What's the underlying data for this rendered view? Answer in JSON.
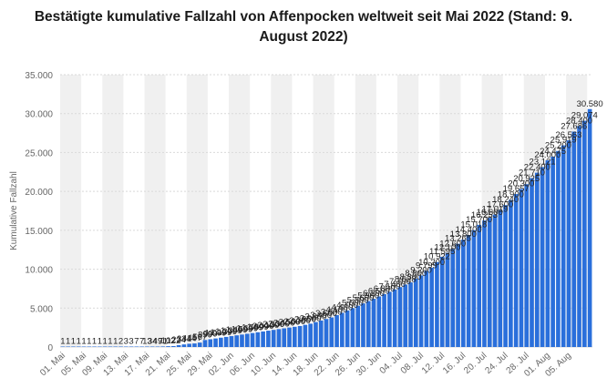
{
  "title": "Bestätigte kumulative Fallzahl von Affenpocken weltweit seit Mai 2022 (Stand: 9. August 2022)",
  "colors": {
    "bar": "#2a6fdb",
    "grid": "#d9d9d9",
    "band": "#f0f0f0",
    "text": "#333333",
    "axis": "#666666"
  },
  "chart_data": {
    "type": "bar",
    "title": "Bestätigte kumulative Fallzahl von Affenpocken weltweit seit Mai 2022 (Stand: 9. August 2022)",
    "xlabel": "",
    "ylabel": "Kumulative Fallzahl",
    "ylim": [
      0,
      35000
    ],
    "yticks": [
      "0",
      "5.000",
      "10.000",
      "15.000",
      "20.000",
      "25.000",
      "30.000",
      "35.000"
    ],
    "ytick_values": [
      0,
      5000,
      10000,
      15000,
      20000,
      25000,
      30000,
      35000
    ],
    "grid": true,
    "categories": [
      "01. Mai",
      "02. Mai",
      "03. Mai",
      "04. Mai",
      "05. Mai",
      "06. Mai",
      "07. Mai",
      "08. Mai",
      "09. Mai",
      "10. Mai",
      "11. Mai",
      "12. Mai",
      "13. Mai",
      "14. Mai",
      "15. Mai",
      "16. Mai",
      "17. Mai",
      "18. Mai",
      "19. Mai",
      "20. Mai",
      "21. Mai",
      "22. Mai",
      "23. Mai",
      "24. Mai",
      "25. Mai",
      "26. Mai",
      "27. Mai",
      "28. Mai",
      "29. Mai",
      "30. Mai",
      "31. Mai",
      "01. Jun",
      "02. Jun",
      "03. Jun",
      "04. Jun",
      "05. Jun",
      "06. Jun",
      "07. Jun",
      "08. Jun",
      "09. Jun",
      "10. Jun",
      "11. Jun",
      "12. Jun",
      "13. Jun",
      "14. Jun",
      "15. Jun",
      "16. Jun",
      "17. Jun",
      "18. Jun",
      "19. Jun",
      "20. Jun",
      "21. Jun",
      "22. Jun",
      "23. Jun",
      "24. Jun",
      "25. Jun",
      "26. Jun",
      "27. Jun",
      "28. Jun",
      "29. Jun",
      "30. Jun",
      "01. Jul",
      "02. Jul",
      "03. Jul",
      "04. Jul",
      "05. Jul",
      "06. Jul",
      "07. Jul",
      "08. Jul",
      "09. Jul",
      "10. Jul",
      "11. Jul",
      "12. Jul",
      "13. Jul",
      "14. Jul",
      "15. Jul",
      "16. Jul",
      "17. Jul",
      "18. Jul",
      "19. Jul",
      "20. Jul",
      "21. Jul",
      "22. Jul",
      "23. Jul",
      "24. Jul",
      "25. Jul",
      "26. Jul",
      "27. Jul",
      "28. Jul",
      "29. Jul",
      "30. Jul",
      "31. Jul",
      "01. Aug",
      "02. Aug",
      "03. Aug",
      "04. Aug",
      "05. Aug",
      "06. Aug",
      "07. Aug",
      "08. Aug",
      "09. Aug"
    ],
    "xtick_labels": [
      "01. Mai",
      "05. Mai",
      "09. Mai",
      "13. Mai",
      "17. Mai",
      "21. Mai",
      "25. Mai",
      "29. Mai",
      "02. Jun",
      "06. Jun",
      "10. Jun",
      "14. Jun",
      "18. Jun",
      "22. Jun",
      "26. Jun",
      "30. Jun",
      "04. Jul",
      "08. Jul",
      "12. Jul",
      "16. Jul",
      "20. Jul",
      "24. Jul",
      "28. Jul",
      "01. Aug",
      "05. Aug"
    ],
    "values": [
      1,
      1,
      1,
      1,
      1,
      1,
      1,
      1,
      1,
      1,
      1,
      2,
      3,
      3,
      7,
      7,
      13,
      34,
      49,
      71,
      102,
      122,
      234,
      334,
      414,
      457,
      567,
      899,
      999,
      1099,
      1199,
      1299,
      1399,
      1499,
      1599,
      1699,
      1799,
      1899,
      2000,
      2100,
      2200,
      2300,
      2400,
      2500,
      2600,
      2700,
      2850,
      3000,
      3200,
      3400,
      3600,
      3800,
      4100,
      4400,
      4700,
      5000,
      5300,
      5600,
      5900,
      6200,
      6500,
      6800,
      7100,
      7400,
      7700,
      8028,
      8300,
      8800,
      9200,
      9799,
      10200,
      10922,
      11595,
      12100,
      12600,
      13265,
      13800,
      14400,
      15018,
      15700,
      16253,
      16600,
      17019,
      17600,
      18240,
      18900,
      19657,
      20300,
      20925,
      21710,
      22400,
      23121,
      24000,
      24475,
      25200,
      25919,
      26563,
      27686,
      28400,
      29074,
      30580
    ],
    "value_labels": [
      "1",
      "1",
      "1",
      "1",
      "1",
      "1",
      "1",
      "1",
      "1",
      "1",
      "1",
      "2",
      "3",
      "3",
      "7",
      "7",
      "13",
      "34",
      "49",
      "71",
      "102",
      "122",
      "234",
      "334",
      "414",
      "457",
      "567",
      "899",
      "999",
      "1.099",
      "1.199",
      "1.299",
      "1.399",
      "1.499",
      "1.599",
      "1.699",
      "1.799",
      "1.899",
      "2.000",
      "2.100",
      "2.200",
      "2.300",
      "2.400",
      "2.500",
      "2.600",
      "2.700",
      "2.850",
      "3.000",
      "3.200",
      "3.400",
      "3.600",
      "3.800",
      "4.100",
      "4.400",
      "4.700",
      "5.000",
      "5.300",
      "5.600",
      "5.900",
      "6.200",
      "6.500",
      "6.800",
      "7.100",
      "7.400",
      "7.700",
      "8.028",
      "8.300",
      "8.800",
      "9.200",
      "9.799",
      "10.200",
      "10.922",
      "11.595",
      "12.100",
      "12.600",
      "13.265",
      "13.800",
      "14.400",
      "15.018",
      "15.700",
      "16.253",
      "16.600",
      "17.019",
      "17.600",
      "18.240",
      "18.900",
      "19.657",
      "20.300",
      "20.925",
      "21.710",
      "22.400",
      "23.121",
      "24.000",
      "24.475",
      "25.200",
      "25.919",
      "26.563",
      "27.686",
      "28.400",
      "29.074",
      "30.580"
    ]
  }
}
